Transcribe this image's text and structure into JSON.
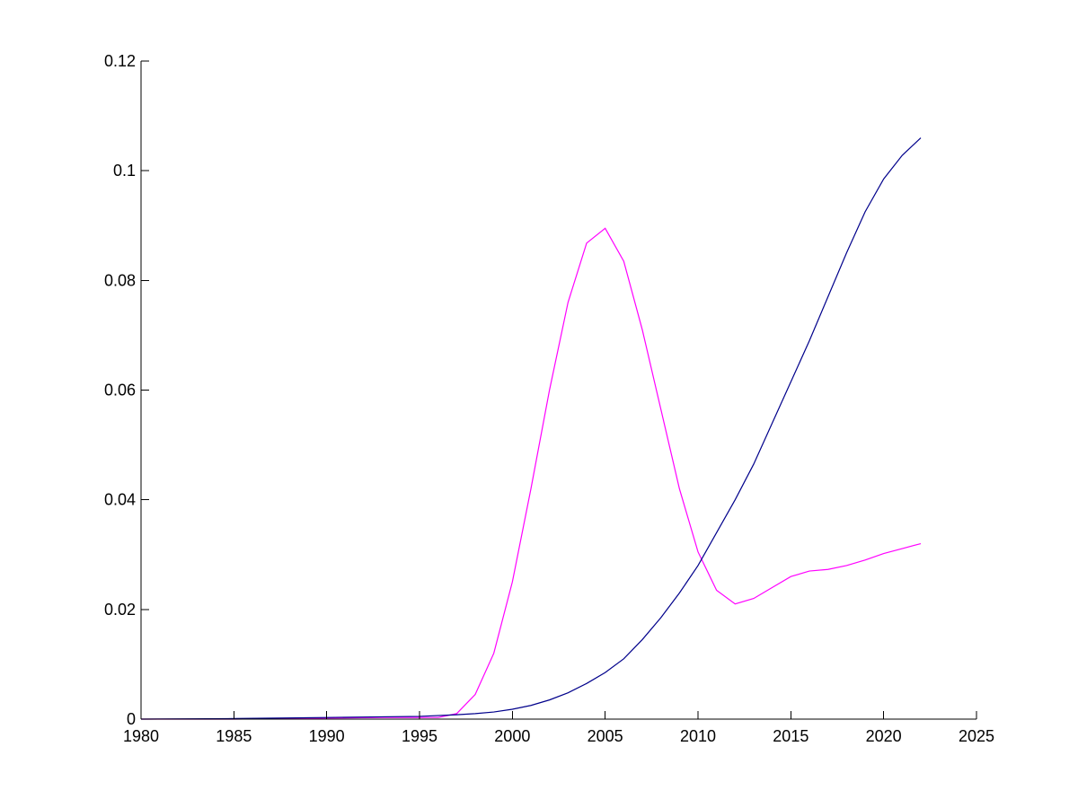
{
  "chart_data": {
    "type": "line",
    "title": "",
    "xlabel": "",
    "ylabel": "",
    "xlim": [
      1980,
      2025
    ],
    "ylim": [
      0,
      0.12
    ],
    "xticks": [
      1980,
      1985,
      1990,
      1995,
      2000,
      2005,
      2010,
      2015,
      2020,
      2025
    ],
    "yticks": [
      0,
      0.02,
      0.04,
      0.06,
      0.08,
      0.1,
      0.12
    ],
    "xtick_labels": [
      "1980",
      "1985",
      "1990",
      "1995",
      "2000",
      "2005",
      "2010",
      "2015",
      "2020",
      "2025"
    ],
    "ytick_labels": [
      "0",
      "0.02",
      "0.04",
      "0.06",
      "0.08",
      "0.1",
      "0.12"
    ],
    "grid": false,
    "series": [
      {
        "color": "#ff00ff",
        "x": [
          1980,
          1985,
          1990,
          1993,
          1995,
          1996,
          1997,
          1998,
          1999,
          2000,
          2001,
          2002,
          2003,
          2004,
          2005,
          2006,
          2007,
          2008,
          2009,
          2010,
          2011,
          2012,
          2013,
          2014,
          2015,
          2016,
          2017,
          2018,
          2019,
          2020,
          2021,
          2022
        ],
        "values": [
          0,
          0,
          0.0002,
          0.0003,
          0.0003,
          0.0003,
          0.001,
          0.0045,
          0.012,
          0.025,
          0.042,
          0.06,
          0.076,
          0.0868,
          0.0895,
          0.0835,
          0.071,
          0.0565,
          0.042,
          0.0305,
          0.0235,
          0.021,
          0.022,
          0.024,
          0.026,
          0.027,
          0.0273,
          0.028,
          0.029,
          0.0302,
          0.0311,
          0.032
        ]
      },
      {
        "color": "#00008b",
        "x": [
          1980,
          1985,
          1990,
          1995,
          1997,
          1998,
          1999,
          2000,
          2001,
          2002,
          2003,
          2004,
          2005,
          2006,
          2007,
          2008,
          2009,
          2010,
          2011,
          2012,
          2013,
          2014,
          2015,
          2016,
          2017,
          2018,
          2019,
          2020,
          2021,
          2022
        ],
        "values": [
          0,
          0.0001,
          0.0003,
          0.0005,
          0.0008,
          0.001,
          0.0013,
          0.0018,
          0.0025,
          0.0035,
          0.0048,
          0.0065,
          0.0085,
          0.011,
          0.0145,
          0.0185,
          0.023,
          0.028,
          0.034,
          0.04,
          0.0465,
          0.054,
          0.0615,
          0.069,
          0.077,
          0.085,
          0.0925,
          0.0985,
          0.1028,
          0.106
        ]
      }
    ]
  }
}
